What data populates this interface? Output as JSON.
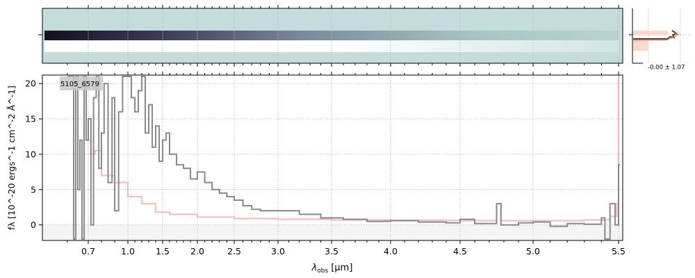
{
  "chart_data": {
    "type": "line",
    "object_label": "5105_6579",
    "xlabel": "λobs [μm]",
    "xlabel_main": "λ",
    "xlabel_sub": "obs",
    "xlabel_unit": " [μm]",
    "ylabel": "fλ [10^-20 ergs^-1 cm^-2 Å^-1]",
    "ylim": [
      -2.2,
      21.2
    ],
    "xlim": [
      0.5,
      5.52
    ],
    "x_ticks": [
      0.7,
      1.0,
      1.5,
      2.0,
      2.5,
      3.0,
      3.5,
      4.0,
      4.5,
      5.0,
      5.5
    ],
    "x_tick_labels": [
      "0.7",
      "1.0",
      "1.5",
      "2.0",
      "2.5",
      "3.0",
      "3.5",
      "4.0",
      "4.5",
      "5.0",
      "5.5"
    ],
    "y_ticks": [
      0,
      5,
      10,
      15,
      20
    ],
    "y_tick_labels": [
      "0",
      "5",
      "10",
      "15",
      "20"
    ],
    "grid": true,
    "series": [
      {
        "name": "data",
        "color": "#888888",
        "points": [
          [
            0.6,
            21
          ],
          [
            0.62,
            21
          ],
          [
            0.63,
            -2
          ],
          [
            0.64,
            21
          ],
          [
            0.65,
            5
          ],
          [
            0.66,
            12
          ],
          [
            0.67,
            -2
          ],
          [
            0.68,
            21
          ],
          [
            0.69,
            12
          ],
          [
            0.7,
            15
          ],
          [
            0.72,
            0
          ],
          [
            0.74,
            18
          ],
          [
            0.76,
            21
          ],
          [
            0.78,
            8
          ],
          [
            0.8,
            13
          ],
          [
            0.82,
            20
          ],
          [
            0.85,
            6
          ],
          [
            0.88,
            18
          ],
          [
            0.9,
            2
          ],
          [
            0.93,
            16
          ],
          [
            0.96,
            21
          ],
          [
            1.0,
            21
          ],
          [
            1.05,
            18
          ],
          [
            1.1,
            16
          ],
          [
            1.15,
            19
          ],
          [
            1.2,
            21
          ],
          [
            1.25,
            13
          ],
          [
            1.3,
            17
          ],
          [
            1.35,
            11
          ],
          [
            1.4,
            14
          ],
          [
            1.45,
            9
          ],
          [
            1.5,
            12
          ],
          [
            1.55,
            13
          ],
          [
            1.6,
            10
          ],
          [
            1.7,
            8.5
          ],
          [
            1.8,
            8
          ],
          [
            1.9,
            6.5
          ],
          [
            2.0,
            7.5
          ],
          [
            2.1,
            6
          ],
          [
            2.2,
            5
          ],
          [
            2.3,
            4.5
          ],
          [
            2.4,
            4
          ],
          [
            2.5,
            3.5
          ],
          [
            2.6,
            2.7
          ],
          [
            2.7,
            2.2
          ],
          [
            2.8,
            2.0
          ],
          [
            3.0,
            2.0
          ],
          [
            3.2,
            1.5
          ],
          [
            3.4,
            1.0
          ],
          [
            3.6,
            0.8
          ],
          [
            3.8,
            0.5
          ],
          [
            4.0,
            0.6
          ],
          [
            4.2,
            0.4
          ],
          [
            4.4,
            0.3
          ],
          [
            4.5,
            0.8
          ],
          [
            4.6,
            0.2
          ],
          [
            4.75,
            3
          ],
          [
            4.78,
            0
          ],
          [
            4.9,
            0.3
          ],
          [
            5.0,
            0.4
          ],
          [
            5.1,
            -0.2
          ],
          [
            5.2,
            0.2
          ],
          [
            5.3,
            0.1
          ],
          [
            5.4,
            1
          ],
          [
            5.42,
            -2
          ],
          [
            5.45,
            3
          ],
          [
            5.48,
            0
          ],
          [
            5.5,
            8.5
          ]
        ]
      },
      {
        "name": "model",
        "color": "#f4a0a0",
        "points": [
          [
            0.65,
            21
          ],
          [
            0.68,
            12
          ],
          [
            0.72,
            10
          ],
          [
            0.75,
            10.5
          ],
          [
            0.8,
            7
          ],
          [
            0.9,
            6
          ],
          [
            1.0,
            4
          ],
          [
            1.2,
            3
          ],
          [
            1.4,
            1.8
          ],
          [
            1.6,
            1.5
          ],
          [
            2.0,
            1.1
          ],
          [
            2.5,
            0.9
          ],
          [
            3.0,
            0.8
          ],
          [
            3.5,
            0.7
          ],
          [
            4.0,
            0.65
          ],
          [
            4.5,
            0.6
          ],
          [
            4.75,
            3
          ],
          [
            4.78,
            0.6
          ],
          [
            5.0,
            0.6
          ],
          [
            5.3,
            0.7
          ],
          [
            5.45,
            1.2
          ],
          [
            5.49,
            3
          ],
          [
            5.5,
            21
          ]
        ]
      }
    ],
    "profile_panel": {
      "label": "-0.00 ± 1.07"
    }
  },
  "colors": {
    "spectrum2d_bg": "#c5dcdc",
    "data": "#888888",
    "model": "#f4a0a0",
    "zero_band": "#f4f4f4"
  }
}
